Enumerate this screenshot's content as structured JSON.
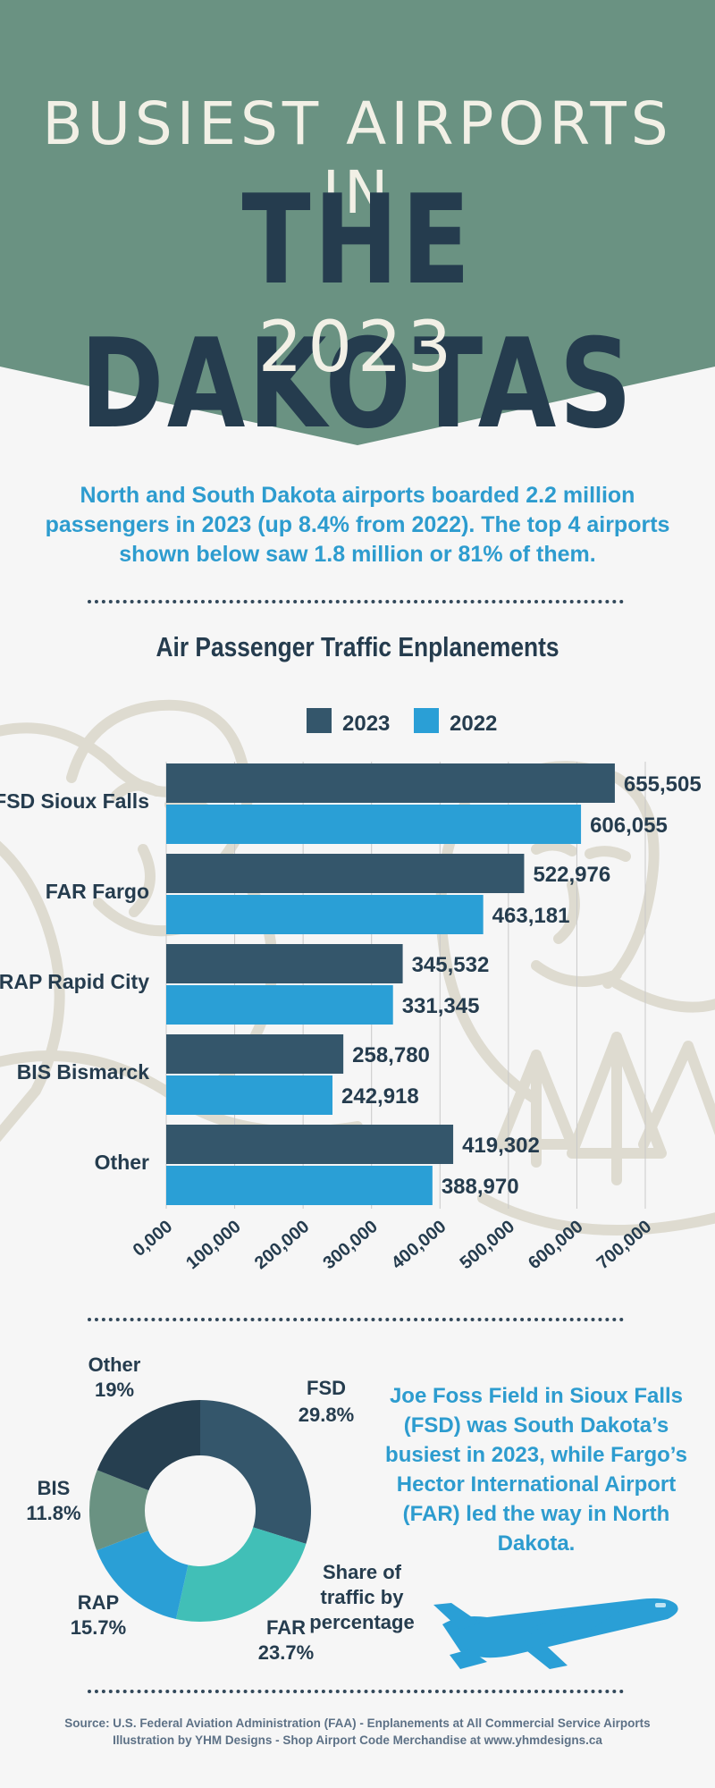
{
  "header": {
    "line1": "BUSIEST AIRPORTS IN",
    "line2": "THE DAKOTAS",
    "line3": "2023"
  },
  "intro": "North and South Dakota airports boarded 2.2 million passengers in 2023 (up 8.4% from 2022). The top 4 airports shown below saw 1.8 million or 81% of them.",
  "colors": {
    "header_bg": "#6a9282",
    "dark_navy": "#253c4e",
    "bar_2023": "#34566b",
    "bar_2022": "#2a9fd6",
    "accent_text": "#2d9ccf"
  },
  "chart_data": [
    {
      "type": "bar",
      "orientation": "horizontal",
      "title": "Air Passenger Traffic Enplanements",
      "categories": [
        "FSD Sioux Falls",
        "FAR Fargo",
        "RAP Rapid City",
        "BIS Bismarck",
        "Other"
      ],
      "series": [
        {
          "name": "2023",
          "color": "#34566b",
          "values": [
            655505,
            522976,
            345532,
            258780,
            419302
          ],
          "labels": [
            "655,505",
            "522,976",
            "345,532",
            "258,780",
            "419,302"
          ]
        },
        {
          "name": "2022",
          "color": "#2a9fd6",
          "values": [
            606055,
            463181,
            331345,
            242918,
            388970
          ],
          "labels": [
            "606,055",
            "463,181",
            "331,345",
            "242,918",
            "388,970"
          ]
        }
      ],
      "xlim": [
        0,
        700000
      ],
      "xticks": [
        0,
        100000,
        200000,
        300000,
        400000,
        500000,
        600000,
        700000
      ],
      "xtick_labels": [
        "0,000",
        "100,000",
        "200,000",
        "300,000",
        "400,000",
        "500,000",
        "600,000",
        "700,000"
      ],
      "legend": "top",
      "grid": true
    },
    {
      "type": "pie",
      "style": "donut",
      "slices": [
        {
          "label": "FSD",
          "pct_label": "29.8%",
          "value": 29.8,
          "color": "#34566b"
        },
        {
          "label": "FAR",
          "pct_label": "23.7%",
          "value": 23.7,
          "color": "#41bfb7"
        },
        {
          "label": "RAP",
          "pct_label": "15.7%",
          "value": 15.7,
          "color": "#2a9fd6"
        },
        {
          "label": "BIS",
          "pct_label": "11.8%",
          "value": 11.8,
          "color": "#6a9282"
        },
        {
          "label": "Other",
          "pct_label": "19%",
          "value": 19.0,
          "color": "#263f50"
        }
      ]
    }
  ],
  "pie_caption": "Share of traffic by percentage",
  "callout": "Joe Foss Field in Sioux Falls (FSD) was South Dakota’s busiest in 2023, while Fargo’s Hector International Airport (FAR) led the way in North Dakota.",
  "source": {
    "line1": "Source: U.S. Federal Aviation Administration (FAA) - Enplanements at All Commercial Service Airports",
    "line2": "Illustration by YHM Designs - Shop Airport Code Merchandise at www.yhmdesigns.ca"
  },
  "icons": [
    "airplane-icon",
    "mount-rushmore-illustration",
    "pine-tree-illustration"
  ]
}
